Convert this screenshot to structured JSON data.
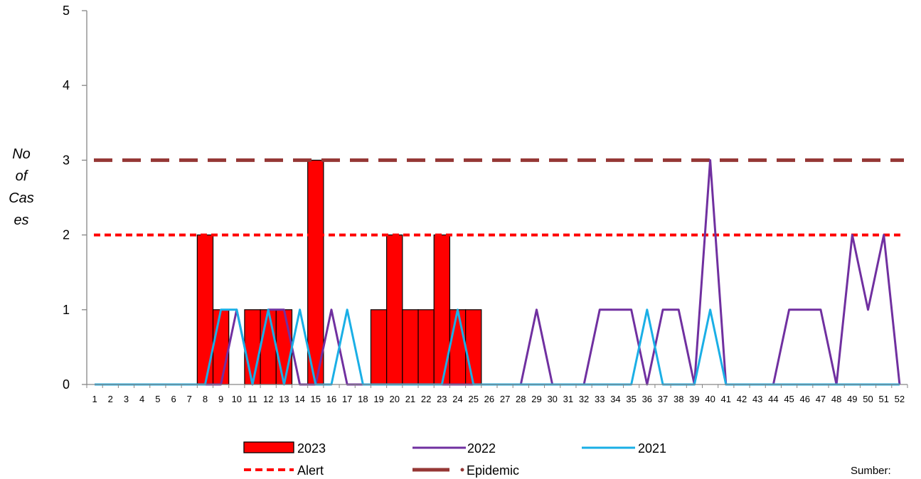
{
  "chart_data": {
    "type": "bar",
    "title": "",
    "xlabel": "",
    "ylabel_lines": [
      "No",
      "of",
      "Cas",
      "es"
    ],
    "ylim": [
      0,
      5
    ],
    "yticks": [
      0,
      1,
      2,
      3,
      4,
      5
    ],
    "grid": false,
    "categories": [
      "1",
      "2",
      "3",
      "4",
      "5",
      "6",
      "7",
      "8",
      "9",
      "10",
      "11",
      "12",
      "13",
      "14",
      "15",
      "16",
      "17",
      "18",
      "19",
      "20",
      "21",
      "22",
      "23",
      "24",
      "25",
      "26",
      "27",
      "28",
      "29",
      "30",
      "31",
      "32",
      "33",
      "34",
      "35",
      "36",
      "37",
      "38",
      "39",
      "40",
      "41",
      "42",
      "43",
      "44",
      "45",
      "46",
      "47",
      "48",
      "49",
      "50",
      "51",
      "52"
    ],
    "series": [
      {
        "name": "2023",
        "kind": "bar",
        "color": "#ff0000",
        "values": [
          0,
          0,
          0,
          0,
          0,
          0,
          0,
          2,
          1,
          0,
          1,
          1,
          1,
          0,
          3,
          0,
          0,
          0,
          1,
          2,
          1,
          1,
          2,
          1,
          1,
          0,
          0,
          0,
          0,
          0,
          0,
          0,
          0,
          0,
          0,
          0,
          0,
          0,
          0,
          0,
          0,
          0,
          0,
          0,
          0,
          0,
          0,
          0,
          0,
          0,
          0,
          0
        ]
      },
      {
        "name": "2022",
        "kind": "line",
        "color": "#7030a0",
        "values": [
          0,
          0,
          0,
          0,
          0,
          0,
          0,
          0,
          0,
          1,
          0,
          1,
          1,
          0,
          0,
          1,
          0,
          0,
          0,
          0,
          0,
          0,
          0,
          0,
          0,
          0,
          0,
          0,
          1,
          0,
          0,
          0,
          1,
          1,
          1,
          0,
          1,
          1,
          0,
          3,
          0,
          0,
          0,
          0,
          1,
          1,
          1,
          0,
          2,
          1,
          2,
          0
        ]
      },
      {
        "name": "2021",
        "kind": "line",
        "color": "#1aafe6",
        "values": [
          0,
          0,
          0,
          0,
          0,
          0,
          0,
          0,
          1,
          1,
          0,
          1,
          0,
          1,
          0,
          0,
          1,
          0,
          0,
          0,
          0,
          0,
          0,
          1,
          0,
          0,
          0,
          0,
          0,
          0,
          0,
          0,
          0,
          0,
          0,
          1,
          0,
          0,
          0,
          1,
          0,
          0,
          0,
          0,
          0,
          0,
          0,
          0,
          0,
          0,
          0,
          0
        ]
      }
    ],
    "thresholds": [
      {
        "name": "Alert",
        "value": 2,
        "color": "#ff0000",
        "style": "short-dash"
      },
      {
        "name": "Epidemic",
        "value": 3,
        "color": "#953735",
        "style": "long-dash"
      }
    ],
    "legend_placement": "bottom",
    "source_note": "Sumber:"
  }
}
